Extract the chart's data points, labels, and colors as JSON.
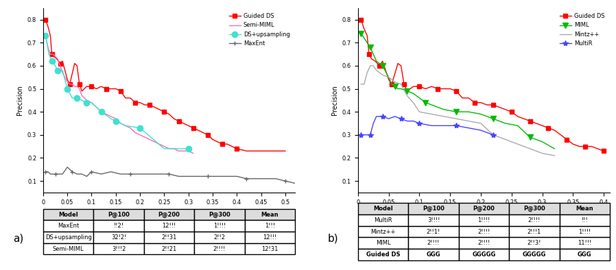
{
  "plot_a": {
    "title": "a)",
    "xlabel": "Recall",
    "ylabel": "Precision",
    "xlim": [
      0,
      0.52
    ],
    "ylim": [
      0.05,
      0.85
    ],
    "xticks": [
      0,
      0.05,
      0.1,
      0.15,
      0.2,
      0.25,
      0.3,
      0.35,
      0.4,
      0.45,
      0.5
    ],
    "yticks": [
      0.1,
      0.2,
      0.3,
      0.4,
      0.5,
      0.6,
      0.7,
      0.8
    ],
    "guided_ds": {
      "recall": [
        0.005,
        0.01,
        0.015,
        0.018,
        0.022,
        0.028,
        0.035,
        0.04,
        0.05,
        0.055,
        0.065,
        0.07,
        0.075,
        0.08,
        0.09,
        0.1,
        0.11,
        0.12,
        0.13,
        0.14,
        0.15,
        0.16,
        0.17,
        0.18,
        0.19,
        0.2,
        0.21,
        0.22,
        0.23,
        0.24,
        0.25,
        0.26,
        0.27,
        0.28,
        0.29,
        0.3,
        0.31,
        0.32,
        0.33,
        0.34,
        0.35,
        0.36,
        0.37,
        0.38,
        0.39,
        0.4,
        0.42,
        0.5
      ],
      "precision": [
        0.8,
        0.77,
        0.73,
        0.65,
        0.64,
        0.63,
        0.61,
        0.62,
        0.54,
        0.52,
        0.61,
        0.6,
        0.52,
        0.49,
        0.51,
        0.51,
        0.5,
        0.51,
        0.5,
        0.5,
        0.5,
        0.49,
        0.46,
        0.46,
        0.44,
        0.44,
        0.43,
        0.43,
        0.42,
        0.41,
        0.4,
        0.39,
        0.37,
        0.36,
        0.35,
        0.34,
        0.33,
        0.32,
        0.31,
        0.3,
        0.28,
        0.27,
        0.26,
        0.26,
        0.25,
        0.24,
        0.23,
        0.23
      ],
      "color": "#ff0000",
      "marker": "s",
      "label": "Guided DS"
    },
    "semi_miml": {
      "recall": [
        0.005,
        0.01,
        0.015,
        0.02,
        0.025,
        0.03,
        0.035,
        0.04,
        0.045,
        0.05,
        0.055,
        0.06,
        0.065,
        0.07,
        0.075,
        0.08,
        0.09,
        0.1,
        0.11,
        0.12,
        0.13,
        0.14,
        0.15,
        0.16,
        0.17,
        0.18,
        0.19,
        0.2,
        0.21,
        0.22,
        0.23,
        0.24,
        0.25,
        0.26,
        0.27,
        0.28,
        0.29,
        0.3,
        0.31
      ],
      "precision": [
        0.73,
        0.68,
        0.65,
        0.65,
        0.64,
        0.63,
        0.6,
        0.57,
        0.55,
        0.53,
        0.52,
        0.52,
        0.51,
        0.51,
        0.5,
        0.47,
        0.45,
        0.44,
        0.42,
        0.4,
        0.39,
        0.38,
        0.37,
        0.35,
        0.34,
        0.33,
        0.31,
        0.3,
        0.29,
        0.28,
        0.27,
        0.26,
        0.25,
        0.24,
        0.24,
        0.23,
        0.23,
        0.23,
        0.22
      ],
      "color": "#ff69b4",
      "marker": null,
      "label": "Semi-MIML"
    },
    "ds_upsampling": {
      "recall": [
        0.005,
        0.012,
        0.018,
        0.025,
        0.03,
        0.04,
        0.05,
        0.06,
        0.07,
        0.08,
        0.09,
        0.1,
        0.12,
        0.14,
        0.15,
        0.17,
        0.2,
        0.25,
        0.3
      ],
      "precision": [
        0.73,
        0.65,
        0.62,
        0.6,
        0.58,
        0.58,
        0.5,
        0.46,
        0.46,
        0.45,
        0.44,
        0.44,
        0.4,
        0.37,
        0.36,
        0.34,
        0.33,
        0.24,
        0.24
      ],
      "color": "#40e0d0",
      "marker": "o",
      "label": "DS+upsampling"
    },
    "maxent": {
      "recall": [
        0.005,
        0.01,
        0.015,
        0.02,
        0.025,
        0.03,
        0.04,
        0.05,
        0.06,
        0.07,
        0.08,
        0.09,
        0.1,
        0.12,
        0.14,
        0.16,
        0.18,
        0.2,
        0.22,
        0.24,
        0.26,
        0.28,
        0.3,
        0.32,
        0.34,
        0.36,
        0.38,
        0.4,
        0.42,
        0.44,
        0.46,
        0.48,
        0.5,
        0.52
      ],
      "precision": [
        0.14,
        0.14,
        0.13,
        0.13,
        0.13,
        0.13,
        0.13,
        0.16,
        0.14,
        0.13,
        0.13,
        0.12,
        0.14,
        0.13,
        0.14,
        0.13,
        0.13,
        0.13,
        0.13,
        0.13,
        0.13,
        0.12,
        0.12,
        0.12,
        0.12,
        0.12,
        0.12,
        0.12,
        0.11,
        0.11,
        0.11,
        0.11,
        0.1,
        0.09
      ],
      "color": "#666666",
      "marker": "+",
      "label": "MaxEnt"
    }
  },
  "plot_b": {
    "title": "b)",
    "xlabel": "Recall",
    "ylabel": "Precision",
    "xlim": [
      0,
      0.41
    ],
    "ylim": [
      0.05,
      0.85
    ],
    "xticks": [
      0,
      0.05,
      0.1,
      0.15,
      0.2,
      0.25,
      0.3,
      0.35,
      0.4
    ],
    "yticks": [
      0.1,
      0.2,
      0.3,
      0.4,
      0.5,
      0.6,
      0.7,
      0.8
    ],
    "guided_ds": {
      "recall": [
        0.005,
        0.01,
        0.015,
        0.018,
        0.022,
        0.028,
        0.035,
        0.04,
        0.05,
        0.055,
        0.065,
        0.07,
        0.075,
        0.08,
        0.09,
        0.1,
        0.11,
        0.12,
        0.13,
        0.14,
        0.15,
        0.16,
        0.17,
        0.18,
        0.19,
        0.2,
        0.21,
        0.22,
        0.23,
        0.24,
        0.25,
        0.26,
        0.27,
        0.28,
        0.29,
        0.3,
        0.31,
        0.32,
        0.33,
        0.34,
        0.35,
        0.36,
        0.37,
        0.38,
        0.39,
        0.4
      ],
      "precision": [
        0.8,
        0.76,
        0.73,
        0.65,
        0.63,
        0.62,
        0.6,
        0.62,
        0.54,
        0.52,
        0.61,
        0.6,
        0.52,
        0.49,
        0.51,
        0.51,
        0.5,
        0.51,
        0.5,
        0.5,
        0.5,
        0.49,
        0.46,
        0.46,
        0.44,
        0.44,
        0.43,
        0.43,
        0.42,
        0.41,
        0.4,
        0.38,
        0.37,
        0.36,
        0.35,
        0.34,
        0.33,
        0.32,
        0.3,
        0.28,
        0.26,
        0.25,
        0.25,
        0.25,
        0.24,
        0.23
      ],
      "color": "#ff0000",
      "marker": "s",
      "label": "Guided DS"
    },
    "miml": {
      "recall": [
        0.005,
        0.01,
        0.015,
        0.02,
        0.025,
        0.03,
        0.04,
        0.05,
        0.055,
        0.06,
        0.065,
        0.07,
        0.08,
        0.09,
        0.1,
        0.11,
        0.12,
        0.14,
        0.16,
        0.18,
        0.2,
        0.22,
        0.24,
        0.26,
        0.28,
        0.3,
        0.32
      ],
      "precision": [
        0.74,
        0.72,
        0.7,
        0.68,
        0.65,
        0.62,
        0.6,
        0.55,
        0.52,
        0.51,
        0.5,
        0.5,
        0.49,
        0.48,
        0.46,
        0.44,
        0.43,
        0.41,
        0.4,
        0.4,
        0.39,
        0.37,
        0.35,
        0.34,
        0.29,
        0.27,
        0.24
      ],
      "color": "#00bb00",
      "marker": "v",
      "label": "MIML"
    },
    "mintz": {
      "recall": [
        0.005,
        0.01,
        0.015,
        0.02,
        0.025,
        0.03,
        0.04,
        0.05,
        0.06,
        0.07,
        0.08,
        0.09,
        0.1,
        0.12,
        0.14,
        0.16,
        0.18,
        0.2,
        0.22,
        0.24,
        0.26,
        0.28,
        0.3,
        0.32
      ],
      "precision": [
        0.52,
        0.52,
        0.57,
        0.6,
        0.6,
        0.58,
        0.56,
        0.55,
        0.53,
        0.52,
        0.47,
        0.44,
        0.4,
        0.39,
        0.38,
        0.37,
        0.36,
        0.35,
        0.3,
        0.28,
        0.26,
        0.24,
        0.22,
        0.21
      ],
      "color": "#aaaaaa",
      "marker": null,
      "label": "Mintz++"
    },
    "multir": {
      "recall": [
        0.005,
        0.01,
        0.015,
        0.02,
        0.025,
        0.03,
        0.04,
        0.05,
        0.06,
        0.07,
        0.08,
        0.09,
        0.1,
        0.12,
        0.14,
        0.16,
        0.18,
        0.2,
        0.22
      ],
      "precision": [
        0.3,
        0.3,
        0.3,
        0.3,
        0.35,
        0.38,
        0.38,
        0.37,
        0.38,
        0.37,
        0.36,
        0.36,
        0.35,
        0.34,
        0.34,
        0.34,
        0.33,
        0.32,
        0.3
      ],
      "color": "#4444ff",
      "marker": "*",
      "label": "MultiR"
    }
  },
  "table_left": {
    "col_labels": [
      "Model",
      "P@100",
      "P@200",
      "P@300",
      "Mean"
    ],
    "rows": [
      [
        "MaxEnt",
        "!!2!",
        "12!!!",
        "1!!!!",
        "1!!!"
      ],
      [
        "DS+upsampling",
        "32!2!",
        "2!!31",
        "2!!2",
        "12!!!"
      ],
      [
        "Semi-MIML",
        "3!!!2",
        "2!!21",
        "2!!!!",
        "12!31"
      ]
    ]
  },
  "table_right": {
    "col_labels": [
      "Model",
      "P@100",
      "P@200",
      "P@300",
      "Mean"
    ],
    "rows": [
      [
        "MultiR",
        "3!!!!",
        "1!!!!",
        "2!!!!",
        "!!!"
      ],
      [
        "Mintz++",
        "2!!1!",
        "2!!!!",
        "2!!!1",
        "1!!!!"
      ],
      [
        "MIML",
        "2!!!!",
        "2!!!!",
        "2!!3!",
        "11!!!"
      ],
      [
        "Guided DS",
        "GGG",
        "GGGGG",
        "GGGGG",
        "GGG"
      ]
    ]
  },
  "bg_color": "#ffffff"
}
